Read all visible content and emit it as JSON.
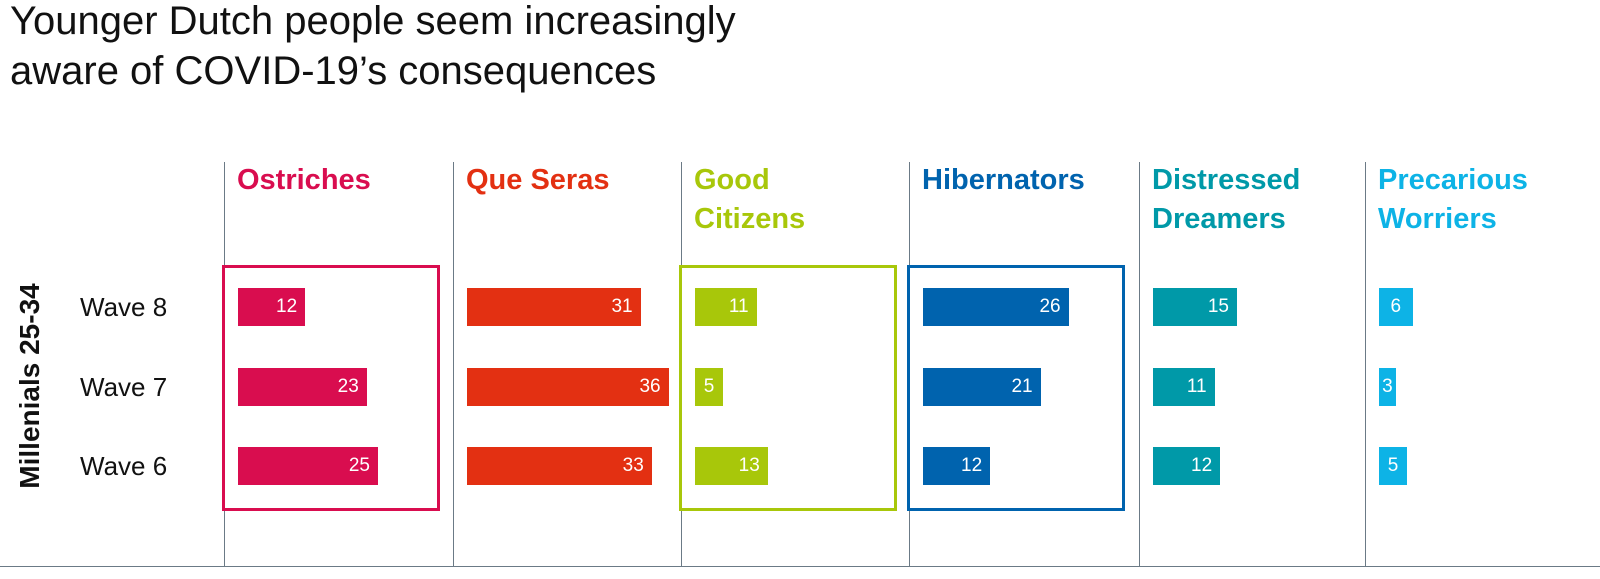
{
  "chart_data": {
    "type": "bar",
    "title": "Younger Dutch people seem increasingly aware of COVID-19’s consequences",
    "row_label": "Millenials 25-34",
    "categories": [
      "Wave 8",
      "Wave 7",
      "Wave 6"
    ],
    "series": [
      {
        "name": "Ostriches",
        "color": "#d90d4f",
        "values": [
          12,
          23,
          25
        ],
        "boxed": true
      },
      {
        "name": "Que Seras",
        "color": "#e33012",
        "values": [
          31,
          36,
          33
        ],
        "boxed": false
      },
      {
        "name": "Good Citizens",
        "color": "#a8c70a",
        "values": [
          11,
          5,
          13
        ],
        "boxed": true
      },
      {
        "name": "Hibernators",
        "color": "#0063ae",
        "values": [
          26,
          21,
          12
        ],
        "boxed": true
      },
      {
        "name": "Distressed Dreamers",
        "color": "#0099a8",
        "values": [
          15,
          11,
          12
        ],
        "boxed": false
      },
      {
        "name": "Precarious Worriers",
        "color": "#0db3e6",
        "values": [
          6,
          3,
          5
        ],
        "boxed": false
      }
    ]
  }
}
